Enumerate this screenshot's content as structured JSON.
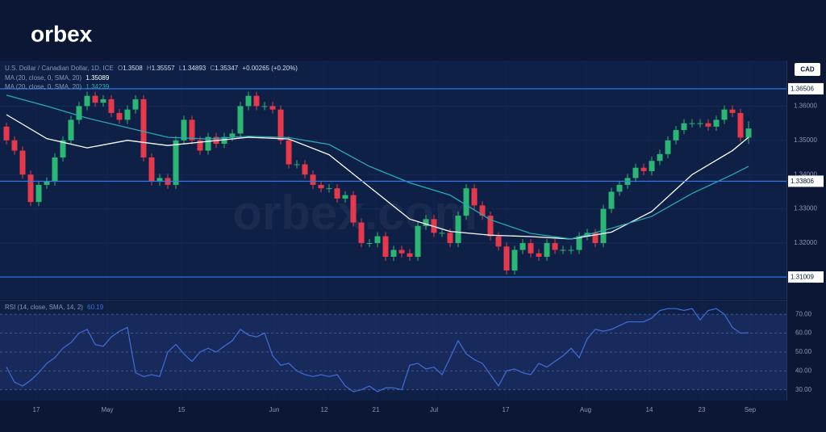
{
  "brand": "orbex",
  "watermark": "orbex.com",
  "chart_data": [
    {
      "type": "candlestick",
      "title": "U.S. Dollar / Canadian Dollar, 1D, ICE",
      "currency": "CAD",
      "change": "+0.00265 (+0.20%)",
      "open_label": "O",
      "high_label": "H",
      "low_label": "L",
      "close_label": "C",
      "up_color": "#2bb673",
      "down_color": "#e5394b",
      "open": [
        1.354,
        1.35,
        1.347,
        1.34,
        1.332,
        1.337,
        1.338,
        1.345,
        1.35,
        1.356,
        1.36,
        1.363,
        1.361,
        1.362,
        1.358,
        1.356,
        1.359,
        1.362,
        1.345,
        1.338,
        1.339,
        1.337,
        1.35,
        1.356,
        1.35,
        1.347,
        1.351,
        1.349,
        1.351,
        1.352,
        1.36,
        1.363,
        1.36,
        1.36,
        1.359,
        1.35,
        1.343,
        1.343,
        1.34,
        1.337,
        1.336,
        1.336,
        1.333,
        1.334,
        1.326,
        1.32,
        1.32,
        1.322,
        1.316,
        1.318,
        1.317,
        1.316,
        1.325,
        1.327,
        1.323,
        1.323,
        1.32,
        1.328,
        1.336,
        1.331,
        1.328,
        1.322,
        1.319,
        1.312,
        1.318,
        1.32,
        1.317,
        1.316,
        1.32,
        1.318,
        1.318,
        1.318,
        1.322,
        1.323,
        1.32,
        1.33,
        1.335,
        1.337,
        1.339,
        1.342,
        1.341,
        1.344,
        1.346,
        1.35,
        1.353,
        1.355,
        1.355,
        1.355,
        1.354,
        1.356,
        1.359,
        1.358,
        1.3508
      ],
      "high": [
        1.3552,
        1.3512,
        1.3482,
        1.3412,
        1.3382,
        1.3392,
        1.3462,
        1.3512,
        1.3572,
        1.3612,
        1.3642,
        1.3642,
        1.3632,
        1.3632,
        1.3592,
        1.3602,
        1.3632,
        1.3632,
        1.3462,
        1.3402,
        1.3402,
        1.3512,
        1.3572,
        1.3572,
        1.3512,
        1.3522,
        1.3522,
        1.3522,
        1.3532,
        1.3612,
        1.3642,
        1.3642,
        1.3612,
        1.3612,
        1.3602,
        1.3512,
        1.3442,
        1.3442,
        1.3412,
        1.3382,
        1.3372,
        1.3372,
        1.3352,
        1.3352,
        1.3272,
        1.3212,
        1.3232,
        1.3232,
        1.3192,
        1.3192,
        1.3182,
        1.3262,
        1.3282,
        1.3282,
        1.3242,
        1.3242,
        1.3292,
        1.3372,
        1.3372,
        1.3322,
        1.3292,
        1.3232,
        1.3202,
        1.3192,
        1.3212,
        1.3212,
        1.3182,
        1.3212,
        1.3212,
        1.3192,
        1.3192,
        1.3232,
        1.3242,
        1.3242,
        1.3312,
        1.3362,
        1.3382,
        1.3402,
        1.3432,
        1.3432,
        1.3452,
        1.3472,
        1.3512,
        1.3542,
        1.3562,
        1.3562,
        1.3562,
        1.3562,
        1.3572,
        1.3602,
        1.3602,
        1.3592,
        1.35557
      ],
      "low": [
        1.3488,
        1.3458,
        1.3388,
        1.3308,
        1.3308,
        1.3358,
        1.3368,
        1.3438,
        1.3488,
        1.3548,
        1.3588,
        1.3598,
        1.3598,
        1.3568,
        1.3548,
        1.3548,
        1.3578,
        1.3438,
        1.3368,
        1.3368,
        1.3358,
        1.3358,
        1.3488,
        1.3488,
        1.3458,
        1.3458,
        1.3478,
        1.3478,
        1.3498,
        1.3508,
        1.3588,
        1.3588,
        1.3588,
        1.3578,
        1.3488,
        1.3418,
        1.3418,
        1.3388,
        1.3358,
        1.3348,
        1.3348,
        1.3318,
        1.3318,
        1.3248,
        1.3188,
        1.3188,
        1.3188,
        1.3148,
        1.3148,
        1.3158,
        1.3148,
        1.3148,
        1.3238,
        1.3218,
        1.3218,
        1.3188,
        1.3188,
        1.3268,
        1.3298,
        1.3268,
        1.3208,
        1.3178,
        1.3108,
        1.3108,
        1.3168,
        1.3158,
        1.3148,
        1.3148,
        1.3168,
        1.3168,
        1.3168,
        1.3168,
        1.3208,
        1.3188,
        1.3188,
        1.3288,
        1.3338,
        1.3358,
        1.3378,
        1.3398,
        1.3398,
        1.3428,
        1.3448,
        1.3488,
        1.3518,
        1.3538,
        1.3538,
        1.3528,
        1.3528,
        1.3548,
        1.3568,
        1.3496,
        1.34893
      ],
      "close": [
        1.35,
        1.347,
        1.34,
        1.332,
        1.337,
        1.338,
        1.345,
        1.35,
        1.356,
        1.36,
        1.363,
        1.361,
        1.362,
        1.358,
        1.356,
        1.359,
        1.362,
        1.345,
        1.338,
        1.339,
        1.337,
        1.35,
        1.356,
        1.35,
        1.347,
        1.351,
        1.349,
        1.351,
        1.352,
        1.36,
        1.363,
        1.36,
        1.36,
        1.359,
        1.35,
        1.343,
        1.343,
        1.34,
        1.337,
        1.336,
        1.336,
        1.333,
        1.334,
        1.326,
        1.32,
        1.32,
        1.322,
        1.316,
        1.318,
        1.317,
        1.316,
        1.325,
        1.327,
        1.323,
        1.323,
        1.32,
        1.328,
        1.336,
        1.331,
        1.328,
        1.322,
        1.319,
        1.312,
        1.318,
        1.32,
        1.317,
        1.316,
        1.32,
        1.318,
        1.318,
        1.318,
        1.322,
        1.323,
        1.32,
        1.33,
        1.335,
        1.337,
        1.339,
        1.342,
        1.341,
        1.344,
        1.346,
        1.35,
        1.353,
        1.355,
        1.355,
        1.355,
        1.354,
        1.356,
        1.359,
        1.358,
        1.3508,
        1.35347
      ],
      "overlays": [
        {
          "name": "MA (20, close, 0, SMA, 20)",
          "color": "#ffffff",
          "x": [
            0,
            5,
            10,
            15,
            20,
            25,
            30,
            35,
            40,
            45,
            50,
            55,
            60,
            65,
            70,
            75,
            80,
            85,
            90,
            92
          ],
          "values": [
            1.3575,
            1.3505,
            1.3478,
            1.35,
            1.3485,
            1.3497,
            1.3509,
            1.3504,
            1.3458,
            1.3364,
            1.327,
            1.3234,
            1.3223,
            1.3219,
            1.3212,
            1.3232,
            1.3292,
            1.34,
            1.347,
            1.35089
          ]
        },
        {
          "name": "MA (20, close, 0, SMA, 20)",
          "color": "#2aa7b5",
          "x": [
            0,
            5,
            10,
            15,
            20,
            25,
            30,
            35,
            40,
            45,
            50,
            55,
            60,
            65,
            70,
            75,
            80,
            85,
            90,
            92
          ],
          "values": [
            1.3632,
            1.36,
            1.3565,
            1.3537,
            1.3509,
            1.3504,
            1.3512,
            1.3508,
            1.3488,
            1.3424,
            1.3376,
            1.334,
            1.3268,
            1.3228,
            1.3212,
            1.3243,
            1.3278,
            1.3345,
            1.34,
            1.34239
          ]
        }
      ],
      "levels": [
        1.36506,
        1.33806,
        1.31009
      ],
      "level_color": "#2f7cf6",
      "ylim": [
        1.3035,
        1.3733
      ],
      "yticks": [
        {
          "value": 1.36,
          "label": "1.36000"
        },
        {
          "value": 1.35,
          "label": "1.35000"
        },
        {
          "value": 1.34,
          "label": "1.34000"
        },
        {
          "value": 1.33,
          "label": "1.33000"
        },
        {
          "value": 1.32,
          "label": "1.32000"
        }
      ],
      "xticks": [
        {
          "value": 3.7,
          "label": "17"
        },
        {
          "value": 12.5,
          "label": "May"
        },
        {
          "value": 21.7,
          "label": "15"
        },
        {
          "value": 33.2,
          "label": "Jun"
        },
        {
          "value": 39.4,
          "label": "12"
        },
        {
          "value": 45.8,
          "label": "21"
        },
        {
          "value": 53,
          "label": "Jul"
        },
        {
          "value": 61.9,
          "label": "17"
        },
        {
          "value": 71.8,
          "label": "Aug"
        },
        {
          "value": 79.7,
          "label": "14"
        },
        {
          "value": 86.2,
          "label": "23"
        },
        {
          "value": 92.2,
          "label": "Sep"
        }
      ]
    },
    {
      "type": "line",
      "title": "RSI (14, close, SMA, 14, 2)",
      "color": "#3d6fd8",
      "values": [
        42,
        34,
        32,
        35,
        39,
        44,
        47,
        52,
        55,
        60,
        62,
        54,
        53,
        58,
        61,
        63,
        39,
        37,
        38,
        37,
        50,
        54,
        49,
        45,
        50,
        52,
        50,
        53,
        56,
        62,
        59,
        58,
        60,
        48,
        43,
        44,
        40,
        38,
        37,
        38,
        37,
        38,
        32,
        29,
        30,
        32,
        29,
        31,
        31,
        30,
        43,
        44,
        41,
        42,
        38,
        47,
        56,
        49,
        46,
        44,
        38,
        32,
        40,
        41,
        39,
        38,
        44,
        42,
        45,
        48,
        52,
        47,
        57,
        62,
        61,
        62,
        64,
        66,
        66,
        66,
        68,
        72,
        73,
        73,
        72,
        73,
        67,
        72,
        73,
        70,
        63,
        60,
        60.19
      ],
      "band": [
        30,
        70
      ],
      "ylim": [
        24.3,
        76.5
      ],
      "yticks": [
        {
          "value": 30,
          "label": "30.00"
        },
        {
          "value": 40,
          "label": "40.00"
        },
        {
          "value": 50,
          "label": "50.00"
        },
        {
          "value": 60,
          "label": "60.00"
        },
        {
          "value": 70,
          "label": "70.00"
        }
      ]
    }
  ]
}
